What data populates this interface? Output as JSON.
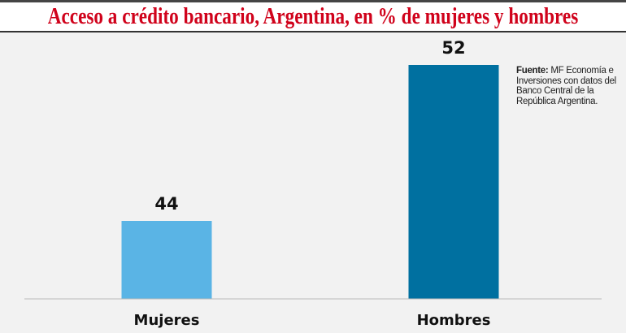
{
  "chart_data": {
    "type": "bar",
    "title": "Acceso a crédito bancario, Argentina, en % de mujeres y hombres",
    "categories": [
      "Mujeres",
      "Hombres"
    ],
    "values": [
      44,
      52
    ],
    "colors": [
      "#5ab4e5",
      "#0070a0"
    ],
    "xlabel": "",
    "ylabel": "",
    "ylim": [
      40,
      53
    ],
    "grid": false,
    "source_label": "Fuente:",
    "source_text": "MF Economía e Inversiones con datos del Banco Central de la República Argentina."
  }
}
